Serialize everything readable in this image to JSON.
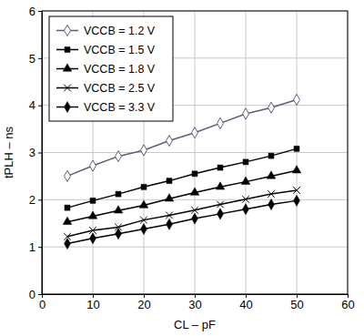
{
  "chart_data": {
    "type": "line",
    "x_label": "CL – pF",
    "y_label": "tPLH – ns",
    "x": [
      5,
      10,
      15,
      20,
      25,
      30,
      35,
      40,
      45,
      50
    ],
    "series": [
      {
        "name": "VCCB = 1.2 V",
        "color": "#5c5c78",
        "marker": "diamond-open",
        "values": [
          2.5,
          2.72,
          2.92,
          3.05,
          3.25,
          3.42,
          3.62,
          3.82,
          3.95,
          4.12
        ]
      },
      {
        "name": "VCCB = 1.5 V",
        "color": "#000000",
        "marker": "square",
        "values": [
          1.83,
          1.98,
          2.12,
          2.27,
          2.4,
          2.55,
          2.68,
          2.8,
          2.93,
          3.08
        ]
      },
      {
        "name": "VCCB = 1.8 V",
        "color": "#000000",
        "marker": "triangle",
        "values": [
          1.53,
          1.65,
          1.77,
          1.88,
          2.02,
          2.15,
          2.27,
          2.38,
          2.5,
          2.62
        ]
      },
      {
        "name": "VCCB = 2.5 V",
        "color": "#000000",
        "marker": "x",
        "values": [
          1.22,
          1.35,
          1.42,
          1.57,
          1.67,
          1.78,
          1.9,
          2.01,
          2.12,
          2.2
        ]
      },
      {
        "name": "VCCB = 3.3 V",
        "color": "#000000",
        "marker": "diamond",
        "values": [
          1.07,
          1.18,
          1.28,
          1.38,
          1.48,
          1.6,
          1.7,
          1.8,
          1.9,
          1.98
        ]
      }
    ],
    "xlim": [
      0,
      60
    ],
    "xticks": [
      0,
      10,
      20,
      30,
      40,
      50,
      60
    ],
    "ylim": [
      0,
      6
    ],
    "yticks": [
      0,
      1,
      2,
      3,
      4,
      5,
      6
    ],
    "grid": true,
    "legend": "upper left"
  }
}
